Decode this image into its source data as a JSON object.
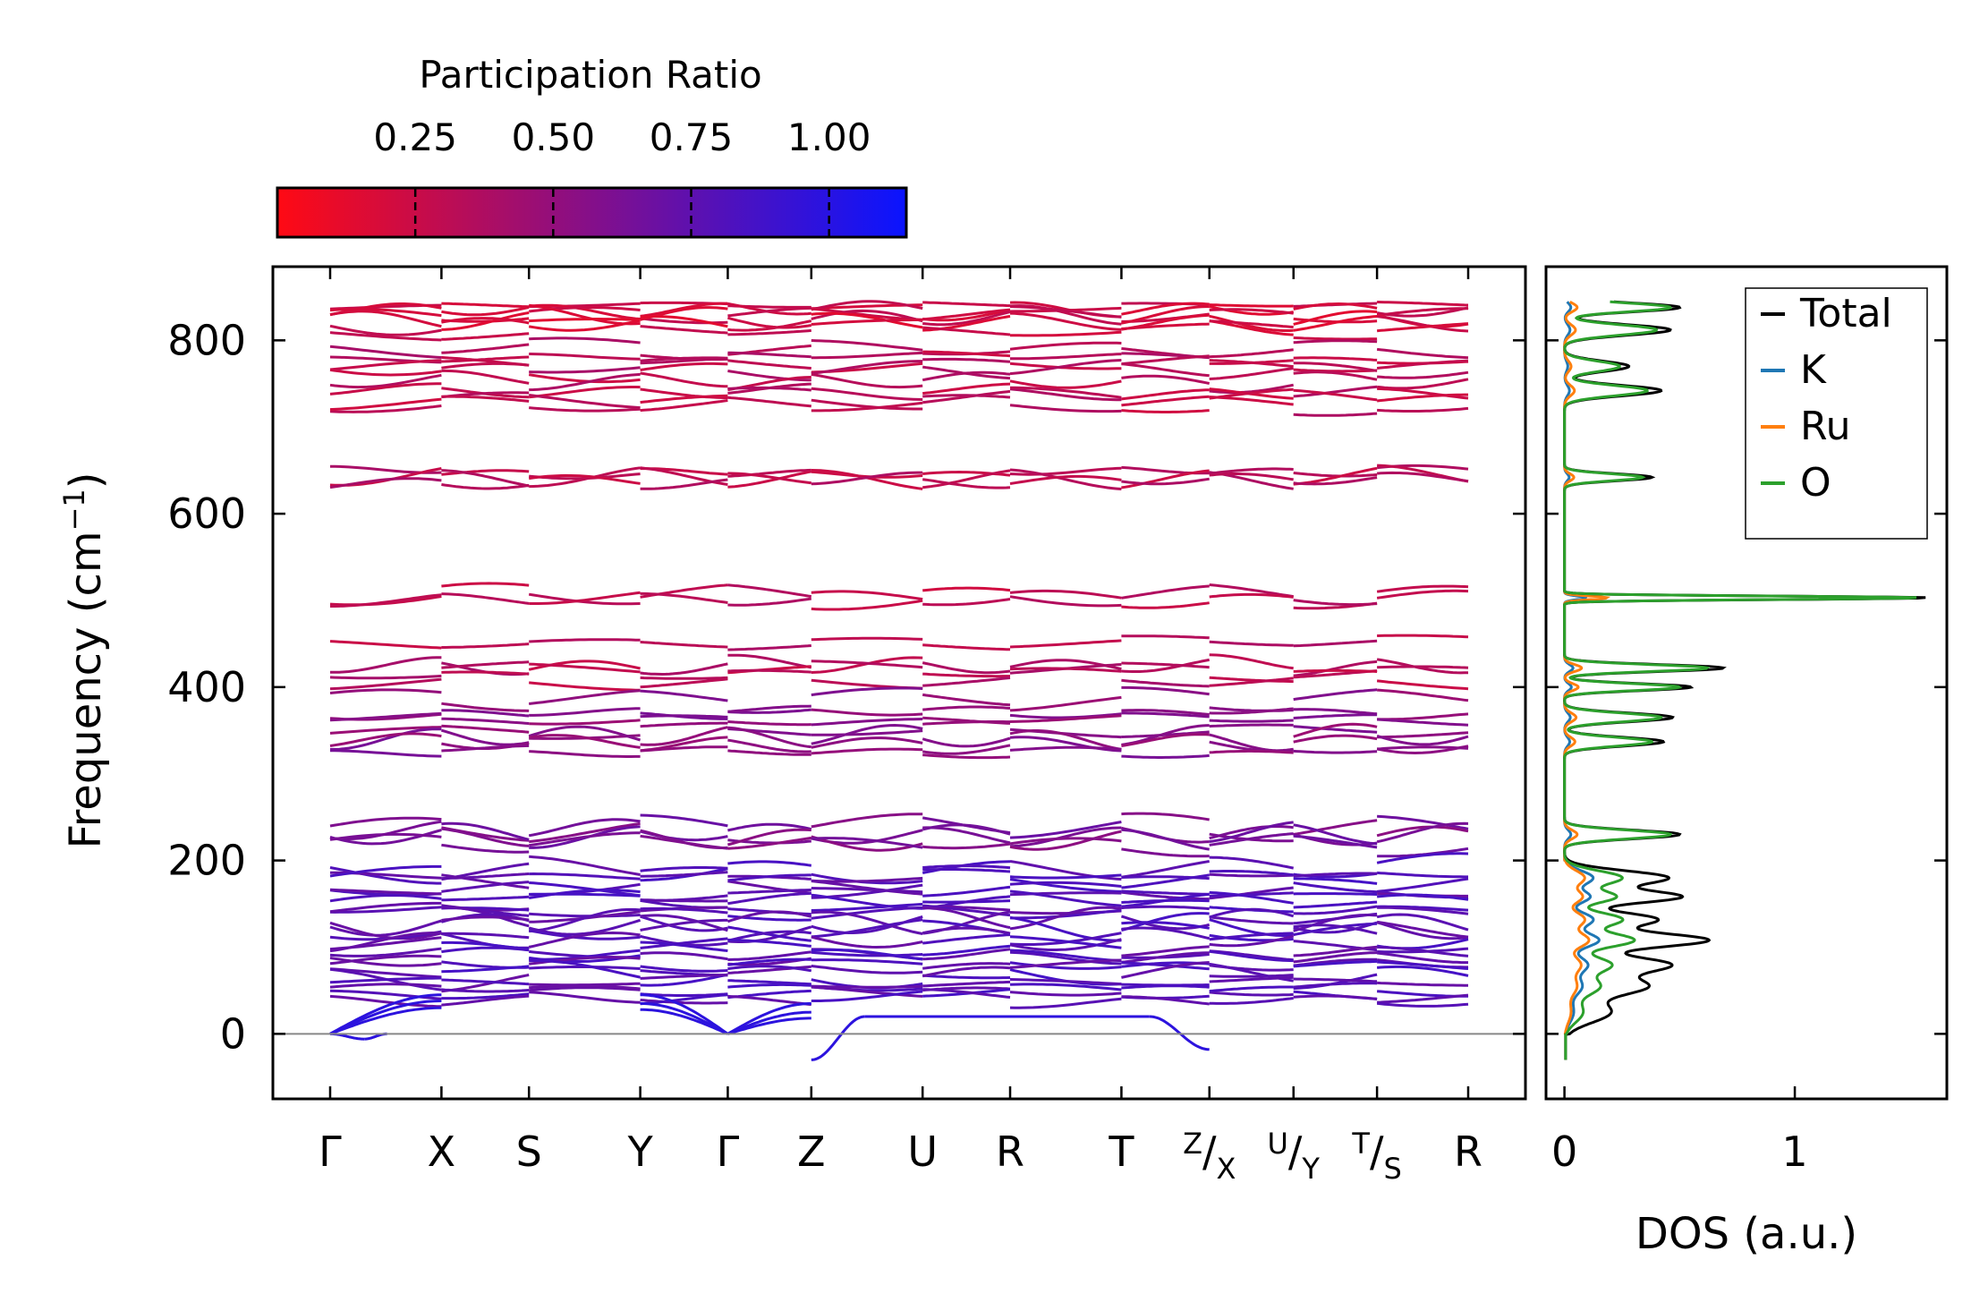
{
  "chart_data": [
    {
      "type": "line",
      "name": "phonon-band-structure",
      "ylabel": "Frequency (cm",
      "ylabel_sup": "−1",
      "ylabel_end": ")",
      "ylim": [
        -75,
        885
      ],
      "yticks": [
        {
          "v": 0,
          "label": "0"
        },
        {
          "v": 200,
          "label": "200"
        },
        {
          "v": 400,
          "label": "400"
        },
        {
          "v": 600,
          "label": "600"
        },
        {
          "v": 800,
          "label": "800"
        }
      ],
      "kpath_positions": [
        0,
        0.0978,
        0.1747,
        0.2725,
        0.3494,
        0.4228,
        0.5206,
        0.5975,
        0.6953,
        0.7726,
        0.8465,
        0.9199,
        1.0
      ],
      "kpath_labels": [
        {
          "main": "Γ"
        },
        {
          "main": "X"
        },
        {
          "main": "S"
        },
        {
          "main": "Y"
        },
        {
          "main": "Γ"
        },
        {
          "main": "Z"
        },
        {
          "main": "U"
        },
        {
          "main": "R"
        },
        {
          "main": "T"
        },
        {
          "sup": "Z",
          "main": "/X"
        },
        {
          "sup": "U",
          "main": "/Y"
        },
        {
          "sup": "T",
          "main": "/S"
        },
        {
          "main": "R"
        }
      ],
      "colorbar": {
        "title": "Participation Ratio",
        "range": [
          0.0,
          1.14
        ],
        "low_color": "#ff0a14",
        "high_color": "#0a14ff",
        "ticks": [
          {
            "v": 0.25,
            "label": "0.25"
          },
          {
            "v": 0.5,
            "label": "0.50"
          },
          {
            "v": 0.75,
            "label": "0.75"
          },
          {
            "v": 1.0,
            "label": "1.00"
          }
        ]
      },
      "band_groups": [
        {
          "freqs": [
            840,
            835,
            830,
            826,
            818,
            812
          ],
          "pr": 0.22
        },
        {
          "freqs": [
            790,
            780,
            772,
            765
          ],
          "pr": 0.32
        },
        {
          "freqs": [
            752,
            740,
            732,
            725
          ],
          "pr": 0.3
        },
        {
          "freqs": [
            648,
            642,
            638
          ],
          "pr": 0.32
        },
        {
          "freqs": [
            505,
            502
          ],
          "pr": 0.3
        },
        {
          "freqs": [
            452,
            425,
            418,
            408
          ],
          "pr": 0.33
        },
        {
          "freqs": [
            385,
            370,
            362,
            350
          ],
          "pr": 0.55
        },
        {
          "freqs": [
            342,
            335,
            326
          ],
          "pr": 0.55
        },
        {
          "freqs": [
            238,
            232,
            228,
            220
          ],
          "pr": 0.62
        },
        {
          "freqs": [
            190,
            182,
            175,
            168,
            160,
            152,
            145,
            138,
            130,
            124,
            118,
            110,
            102,
            95,
            88,
            80,
            74,
            66,
            60,
            52,
            46,
            40
          ],
          "pr": 0.78
        }
      ],
      "acoustic_pr": 0.98,
      "zero_line": 0
    },
    {
      "type": "line",
      "name": "density-of-states",
      "xlabel": "DOS (a.u.)",
      "xlim": [
        -0.08,
        1.66
      ],
      "xticks": [
        {
          "v": 0,
          "label": "0"
        },
        {
          "v": 1,
          "label": "1"
        }
      ],
      "series": [
        {
          "name": "Total",
          "color": "#000000"
        },
        {
          "name": "K",
          "color": "#1f77b4"
        },
        {
          "name": "Ru",
          "color": "#ff7f0e"
        },
        {
          "name": "O",
          "color": "#2ca02c"
        }
      ],
      "peaks": [
        {
          "f": 838,
          "total": 0.5,
          "o": 0.46,
          "w": 5
        },
        {
          "f": 812,
          "total": 0.46,
          "o": 0.4,
          "w": 6
        },
        {
          "f": 770,
          "total": 0.28,
          "o": 0.24,
          "w": 6
        },
        {
          "f": 742,
          "total": 0.42,
          "o": 0.36,
          "w": 6
        },
        {
          "f": 642,
          "total": 0.38,
          "o": 0.34,
          "w": 4
        },
        {
          "f": 503,
          "total": 1.58,
          "o": 1.54,
          "w": 2
        },
        {
          "f": 422,
          "total": 0.69,
          "o": 0.62,
          "w": 4
        },
        {
          "f": 400,
          "total": 0.55,
          "o": 0.5,
          "w": 4
        },
        {
          "f": 365,
          "total": 0.47,
          "o": 0.42,
          "w": 5
        },
        {
          "f": 337,
          "total": 0.43,
          "o": 0.38,
          "w": 5
        },
        {
          "f": 230,
          "total": 0.5,
          "o": 0.46,
          "w": 5
        },
        {
          "f": 180,
          "total": 0.45,
          "o": 0.25,
          "w": 8
        },
        {
          "f": 158,
          "total": 0.5,
          "o": 0.22,
          "w": 7
        },
        {
          "f": 132,
          "total": 0.4,
          "o": 0.25,
          "w": 8
        },
        {
          "f": 108,
          "total": 0.62,
          "o": 0.3,
          "w": 8
        },
        {
          "f": 80,
          "total": 0.45,
          "o": 0.2,
          "w": 9
        },
        {
          "f": 55,
          "total": 0.35,
          "o": 0.15,
          "w": 10
        },
        {
          "f": 25,
          "total": 0.2,
          "o": 0.08,
          "w": 12
        }
      ],
      "fmin": -30,
      "fmax": 845
    }
  ]
}
